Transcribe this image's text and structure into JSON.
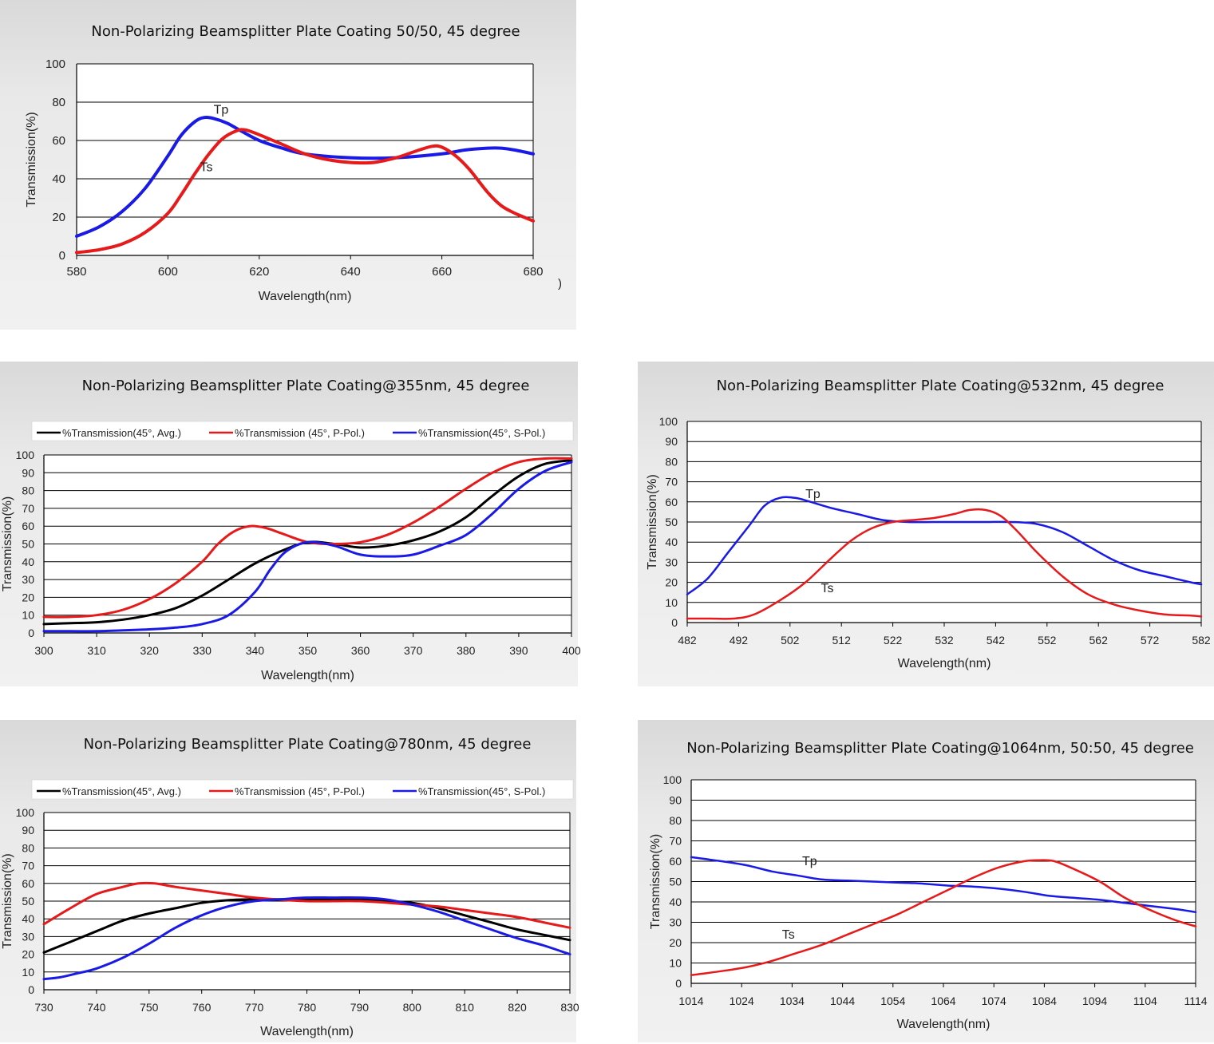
{
  "colors": {
    "tp": "#1a1ae6",
    "ts": "#e61a1a",
    "avg": "#000000",
    "grid": "#000000"
  },
  "chart_data": [
    {
      "type": "line",
      "title": "Non-Polarizing Beamsplitter Plate Coating 50/50, 45 degree",
      "xlabel": "Wavelength(nm)",
      "ylabel": "Transmission(%)",
      "xlim": [
        580,
        680
      ],
      "ylim": [
        0,
        100
      ],
      "xticks": [
        "580",
        "600",
        "620",
        "640",
        "660",
        "680"
      ],
      "yticks": [
        "0",
        "20",
        "40",
        "60",
        "80",
        "100"
      ],
      "stray": ")",
      "series": [
        {
          "name": "Tp",
          "color": "tp",
          "x": [
            580,
            585,
            590,
            595,
            600,
            603,
            606,
            608,
            610,
            613,
            616,
            620,
            625,
            630,
            640,
            650,
            660,
            665,
            670,
            673,
            676,
            680
          ],
          "y": [
            10,
            15,
            23,
            35,
            52,
            63,
            70,
            72,
            71.5,
            69,
            65,
            60,
            56,
            53,
            51,
            51,
            53,
            55,
            56,
            56,
            55,
            53
          ]
        },
        {
          "name": "Ts",
          "color": "ts",
          "x": [
            580,
            585,
            590,
            595,
            600,
            603,
            606,
            609,
            612,
            615,
            617,
            620,
            625,
            630,
            635,
            640,
            645,
            650,
            655,
            658,
            660,
            663,
            666,
            670,
            673,
            676,
            680
          ],
          "y": [
            1.5,
            3,
            6,
            12,
            22,
            32,
            43,
            53,
            61,
            65,
            65.5,
            63,
            58,
            53,
            50,
            48.5,
            48.5,
            51,
            55,
            57,
            56.5,
            52,
            45,
            33,
            26,
            22,
            18
          ]
        }
      ],
      "annotations": [
        {
          "text": "Tp",
          "x": 610,
          "y": 74
        },
        {
          "text": "Ts",
          "x": 607,
          "y": 44
        }
      ]
    },
    {
      "type": "line",
      "title": "Non-Polarizing Beamsplitter Plate Coating@355nm, 45 degree",
      "xlabel": "Wavelength(nm)",
      "ylabel": "Transmission(%)",
      "xlim": [
        300,
        400
      ],
      "ylim": [
        0,
        100
      ],
      "xticks": [
        "300",
        "310",
        "320",
        "330",
        "340",
        "350",
        "360",
        "370",
        "380",
        "390",
        "400"
      ],
      "yticks": [
        "0",
        "10",
        "20",
        "30",
        "40",
        "50",
        "60",
        "70",
        "80",
        "90",
        "100"
      ],
      "legend": [
        "%Transmission(45°, Avg.)",
        "%Transmission (45°, P-Pol.)",
        "%Transmission(45°, S-Pol.)"
      ],
      "series": [
        {
          "name": "%Transmission(45°, Avg.)",
          "color": "avg",
          "x": [
            300,
            305,
            310,
            315,
            320,
            325,
            330,
            335,
            340,
            345,
            350,
            355,
            360,
            365,
            370,
            375,
            380,
            385,
            390,
            395,
            400
          ],
          "y": [
            5,
            5.5,
            6,
            7.5,
            10,
            14,
            21,
            30,
            39,
            46,
            51,
            50,
            48,
            49,
            52,
            57,
            65,
            77,
            88,
            95,
            97
          ]
        },
        {
          "name": "%Transmission (45°, P-Pol.)",
          "color": "ts",
          "x": [
            300,
            305,
            310,
            315,
            320,
            325,
            330,
            333,
            336,
            339,
            342,
            345,
            350,
            355,
            360,
            365,
            370,
            375,
            380,
            385,
            390,
            395,
            400
          ],
          "y": [
            9,
            9,
            10,
            13,
            19,
            28,
            40,
            50,
            57,
            60,
            59,
            56,
            51,
            50,
            51,
            55,
            62,
            71,
            81,
            90,
            96,
            98,
            98
          ]
        },
        {
          "name": "%Transmission(45°, S-Pol.)",
          "color": "tp",
          "x": [
            300,
            305,
            310,
            315,
            320,
            325,
            330,
            335,
            340,
            343,
            346,
            350,
            355,
            360,
            365,
            370,
            375,
            380,
            385,
            390,
            395,
            400
          ],
          "y": [
            1,
            1,
            1,
            1.5,
            2,
            3,
            5,
            10,
            23,
            36,
            46,
            51,
            49,
            44,
            43,
            44,
            49,
            55,
            67,
            81,
            91,
            96
          ]
        }
      ]
    },
    {
      "type": "line",
      "title": "Non-Polarizing Beamsplitter Plate Coating@532nm, 45 degree",
      "xlabel": "Wavelength(nm)",
      "ylabel": "Transmission(%)",
      "xlim": [
        482,
        582
      ],
      "ylim": [
        0,
        100
      ],
      "xticks": [
        "482",
        "492",
        "502",
        "512",
        "522",
        "532",
        "542",
        "552",
        "562",
        "572",
        "582"
      ],
      "yticks": [
        "0",
        "10",
        "20",
        "30",
        "40",
        "50",
        "60",
        "70",
        "80",
        "90",
        "100"
      ],
      "series": [
        {
          "name": "Tp",
          "color": "tp",
          "x": [
            482,
            486,
            490,
            494,
            497,
            500,
            503,
            506,
            510,
            515,
            520,
            525,
            530,
            535,
            540,
            545,
            550,
            555,
            560,
            565,
            570,
            575,
            580,
            582
          ],
          "y": [
            14,
            22,
            35,
            48,
            58,
            62,
            62,
            60,
            57,
            54,
            51,
            50,
            50,
            50,
            50,
            50,
            49,
            45,
            38,
            31,
            26,
            23,
            20,
            19
          ]
        },
        {
          "name": "Ts",
          "color": "ts",
          "x": [
            482,
            486,
            491,
            495,
            500,
            505,
            510,
            514,
            518,
            522,
            526,
            530,
            534,
            537,
            540,
            543,
            546,
            550,
            555,
            560,
            565,
            570,
            575,
            580,
            582
          ],
          "y": [
            2,
            2,
            2,
            4,
            11,
            20,
            32,
            41,
            47,
            50,
            51,
            52,
            54,
            56,
            56,
            53,
            46,
            35,
            23,
            14,
            9,
            6,
            4,
            3.5,
            3
          ]
        }
      ],
      "annotations": [
        {
          "text": "Tp",
          "x": 505,
          "y": 62
        },
        {
          "text": "Ts",
          "x": 508,
          "y": 15
        }
      ]
    },
    {
      "type": "line",
      "title": "Non-Polarizing Beamsplitter Plate Coating@780nm, 45 degree",
      "xlabel": "Wavelength(nm)",
      "ylabel": "Transmission(%)",
      "xlim": [
        730,
        830
      ],
      "ylim": [
        0,
        100
      ],
      "xticks": [
        "730",
        "740",
        "750",
        "760",
        "770",
        "780",
        "790",
        "800",
        "810",
        "820",
        "830"
      ],
      "yticks": [
        "0",
        "10",
        "20",
        "30",
        "40",
        "50",
        "60",
        "70",
        "80",
        "90",
        "100"
      ],
      "legend": [
        "%Transmission(45°, Avg.)",
        "%Transmission (45°, P-Pol.)",
        "%Transmission(45°, S-Pol.)"
      ],
      "series": [
        {
          "name": "%Transmission(45°, Avg.)",
          "color": "avg",
          "x": [
            730,
            735,
            740,
            745,
            750,
            755,
            760,
            765,
            770,
            780,
            790,
            795,
            800,
            805,
            810,
            815,
            820,
            825,
            830
          ],
          "y": [
            21,
            27,
            33,
            39,
            43,
            46,
            49,
            50.5,
            51,
            51,
            51,
            50,
            49,
            46,
            42,
            38,
            34,
            31,
            28
          ]
        },
        {
          "name": "%Transmission (45°, P-Pol.)",
          "color": "ts",
          "x": [
            730,
            735,
            740,
            745,
            748,
            751,
            755,
            760,
            765,
            770,
            780,
            790,
            800,
            805,
            810,
            815,
            820,
            825,
            830
          ],
          "y": [
            37,
            46,
            54,
            58,
            60,
            60,
            58,
            56,
            54,
            52,
            50,
            50,
            48,
            47,
            45,
            43,
            41,
            38,
            35
          ]
        },
        {
          "name": "%Transmission(45°, S-Pol.)",
          "color": "tp",
          "x": [
            730,
            733,
            736,
            740,
            745,
            750,
            755,
            760,
            765,
            770,
            775,
            780,
            785,
            790,
            795,
            800,
            805,
            810,
            815,
            820,
            825,
            830
          ],
          "y": [
            6,
            7,
            9,
            12,
            18,
            26,
            35,
            42,
            47,
            50,
            51,
            52,
            52,
            52,
            51,
            48,
            44,
            39,
            34,
            29,
            25,
            20
          ]
        }
      ]
    },
    {
      "type": "line",
      "title": "Non-Polarizing Beamsplitter Plate Coating@1064nm, 50:50, 45 degree",
      "xlabel": "Wavelength(nm)",
      "ylabel": "Transmission(%)",
      "xlim": [
        1014,
        1114
      ],
      "ylim": [
        0,
        100
      ],
      "xticks": [
        "1014",
        "1024",
        "1034",
        "1044",
        "1054",
        "1064",
        "1074",
        "1084",
        "1094",
        "1104",
        "1114"
      ],
      "yticks": [
        "0",
        "10",
        "20",
        "30",
        "40",
        "50",
        "60",
        "70",
        "80",
        "90",
        "100"
      ],
      "series": [
        {
          "name": "Tp",
          "color": "tp",
          "x": [
            1014,
            1020,
            1025,
            1030,
            1035,
            1040,
            1045,
            1050,
            1055,
            1060,
            1065,
            1070,
            1075,
            1080,
            1085,
            1090,
            1095,
            1100,
            1105,
            1110,
            1114
          ],
          "y": [
            62,
            60,
            58,
            55,
            53,
            51,
            50.5,
            50,
            49.5,
            49,
            48,
            47.5,
            46.5,
            45,
            43,
            42,
            41,
            39.5,
            38,
            36.5,
            35
          ]
        },
        {
          "name": "Ts",
          "color": "ts",
          "x": [
            1014,
            1020,
            1025,
            1030,
            1035,
            1040,
            1045,
            1050,
            1055,
            1060,
            1065,
            1070,
            1075,
            1080,
            1083,
            1086,
            1090,
            1095,
            1100,
            1105,
            1110,
            1114
          ],
          "y": [
            4,
            6,
            8,
            11,
            15,
            19,
            24,
            29,
            34,
            40,
            46,
            52,
            57,
            60,
            60.5,
            60,
            56,
            50,
            42,
            36,
            31,
            28
          ]
        }
      ],
      "annotations": [
        {
          "text": "Tp",
          "x": 1036,
          "y": 58
        },
        {
          "text": "Ts",
          "x": 1032,
          "y": 22
        }
      ]
    }
  ]
}
